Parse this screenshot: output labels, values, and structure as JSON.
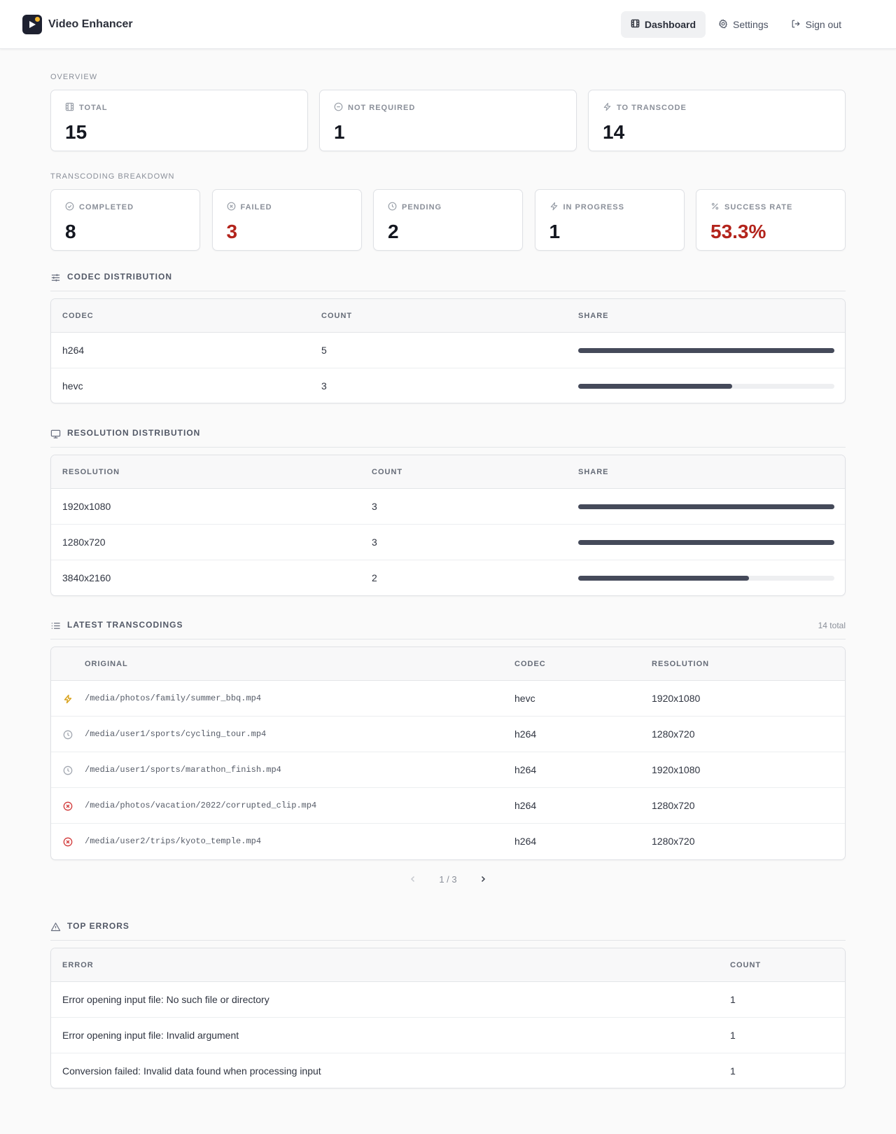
{
  "app": {
    "name": "Video Enhancer"
  },
  "nav": [
    {
      "label": "Dashboard",
      "icon": "film-icon",
      "active": true
    },
    {
      "label": "Settings",
      "icon": "gear-icon",
      "active": false
    },
    {
      "label": "Sign out",
      "icon": "sign-out-icon",
      "active": false
    }
  ],
  "overview": {
    "label": "Overview",
    "cards": [
      {
        "label": "TOTAL",
        "value": "15",
        "icon": "film-icon"
      },
      {
        "label": "NOT REQUIRED",
        "value": "1",
        "icon": "minus-circle-icon"
      },
      {
        "label": "TO TRANSCODE",
        "value": "14",
        "icon": "bolt-icon"
      }
    ]
  },
  "breakdown": {
    "label": "Transcoding breakdown",
    "cards": [
      {
        "label": "COMPLETED",
        "value": "8",
        "icon": "check-circle-icon",
        "color": "#141720"
      },
      {
        "label": "FAILED",
        "value": "3",
        "icon": "x-circle-icon",
        "color": "#b3241c"
      },
      {
        "label": "PENDING",
        "value": "2",
        "icon": "clock-icon",
        "color": "#141720"
      },
      {
        "label": "IN PROGRESS",
        "value": "1",
        "icon": "bolt-icon",
        "color": "#141720"
      },
      {
        "label": "SUCCESS RATE",
        "value": "53.3%",
        "icon": "percent-icon",
        "color": "#b3241c"
      }
    ]
  },
  "codec": {
    "title": "Codec distribution",
    "headers": [
      "Codec",
      "Count",
      "Share"
    ],
    "rows": [
      {
        "name": "h264",
        "count": "5",
        "share": 1.0
      },
      {
        "name": "hevc",
        "count": "3",
        "share": 0.6
      }
    ]
  },
  "resolution": {
    "title": "Resolution distribution",
    "headers": [
      "Resolution",
      "Count",
      "Share"
    ],
    "rows": [
      {
        "name": "1920x1080",
        "count": "3",
        "share": 1.0
      },
      {
        "name": "1280x720",
        "count": "3",
        "share": 1.0
      },
      {
        "name": "3840x2160",
        "count": "2",
        "share": 0.667
      }
    ]
  },
  "latest": {
    "title": "Latest transcodings",
    "total": "14 total",
    "headers": [
      "Original",
      "Codec",
      "Resolution"
    ],
    "rows": [
      {
        "status": "bolt-icon",
        "color": "#d9a21b",
        "path": "/media/photos/family/summer_bbq.mp4",
        "codec": "hevc",
        "resolution": "1920x1080"
      },
      {
        "status": "clock-icon",
        "color": "#a3a8b1",
        "path": "/media/user1/sports/cycling_tour.mp4",
        "codec": "h264",
        "resolution": "1280x720"
      },
      {
        "status": "clock-icon",
        "color": "#a3a8b1",
        "path": "/media/user1/sports/marathon_finish.mp4",
        "codec": "h264",
        "resolution": "1920x1080"
      },
      {
        "status": "x-circle-icon",
        "color": "#d23a3a",
        "path": "/media/photos/vacation/2022/corrupted_clip.mp4",
        "codec": "h264",
        "resolution": "1280x720"
      },
      {
        "status": "x-circle-icon",
        "color": "#d23a3a",
        "path": "/media/user2/trips/kyoto_temple.mp4",
        "codec": "h264",
        "resolution": "1280x720"
      }
    ],
    "pager": "1 / 3"
  },
  "errors": {
    "title": "Top errors",
    "headers": [
      "Error",
      "Count"
    ],
    "rows": [
      {
        "message": "Error opening input file: No such file or directory",
        "count": "1"
      },
      {
        "message": "Error opening input file: Invalid argument",
        "count": "1"
      },
      {
        "message": "Conversion failed: Invalid data found when processing input",
        "count": "1"
      }
    ]
  }
}
